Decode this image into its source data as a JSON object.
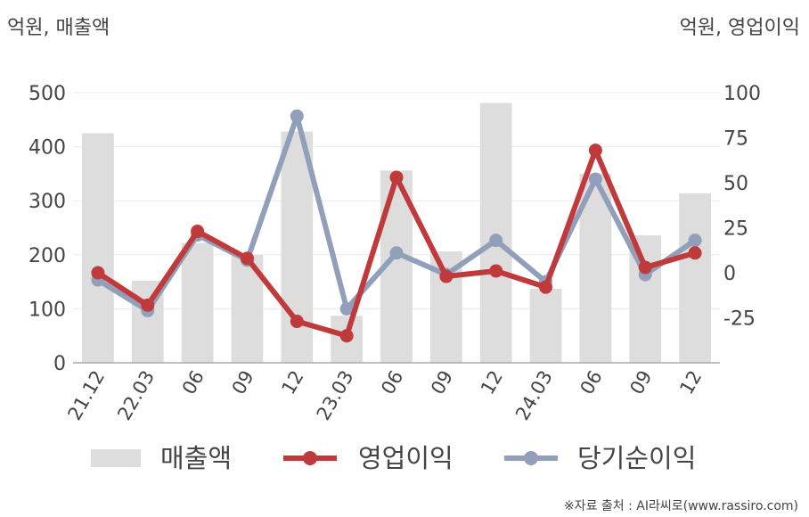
{
  "chart_data": {
    "type": "bar+line",
    "left_axis_label": "억원, 매출액",
    "right_axis_label": "억원, 영업이익",
    "categories": [
      "21.12",
      "22.03",
      "06",
      "09",
      "12",
      "23.03",
      "06",
      "09",
      "12",
      "24.03",
      "06",
      "09",
      "12"
    ],
    "left_ylim": [
      0,
      500
    ],
    "left_ticks": [
      0,
      100,
      200,
      300,
      400,
      500
    ],
    "right_ylim": [
      -50,
      100
    ],
    "right_ticks": [
      -25,
      0,
      25,
      50,
      75,
      100
    ],
    "series": [
      {
        "name": "매출액",
        "kind": "bar",
        "axis": "left",
        "color": "#dddddd",
        "values": [
          425,
          152,
          222,
          200,
          428,
          87,
          356,
          206,
          481,
          137,
          350,
          236,
          314
        ]
      },
      {
        "name": "영업이익",
        "kind": "line",
        "axis": "right",
        "color": "#c0393b",
        "values": [
          0,
          -18,
          23,
          8,
          -27,
          -35,
          53,
          -2,
          1,
          -8,
          68,
          3,
          11
        ]
      },
      {
        "name": "당기순이익",
        "kind": "line",
        "axis": "right",
        "color": "#919fba",
        "values": [
          -4,
          -21,
          21,
          7,
          87,
          -20,
          11,
          -1,
          18,
          -5,
          52,
          -1,
          18
        ]
      }
    ],
    "grid": true,
    "legend_position": "bottom"
  },
  "source_note": "※자료 출처 : AI라씨로(www.rassiro.com)"
}
